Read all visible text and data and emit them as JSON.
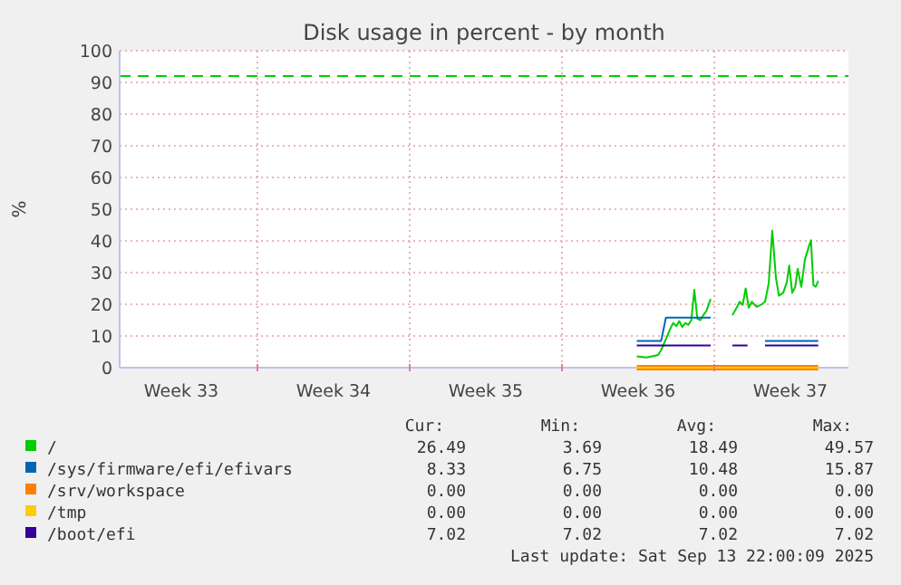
{
  "chart_data": {
    "type": "line",
    "title": "Disk usage in percent - by month",
    "ylabel": "%",
    "xlim": [
      "2025-08-11T16:00",
      "2025-09-14T04:00"
    ],
    "xticks": [
      {
        "value": "2025-08-14T12:00",
        "label": "Week 33"
      },
      {
        "value": "2025-08-18T00:00",
        "label": null
      },
      {
        "value": "2025-08-21T12:00",
        "label": "Week 34"
      },
      {
        "value": "2025-08-25T00:00",
        "label": null
      },
      {
        "value": "2025-08-28T12:00",
        "label": "Week 35"
      },
      {
        "value": "2025-09-01T00:00",
        "label": null
      },
      {
        "value": "2025-09-04T12:00",
        "label": "Week 36"
      },
      {
        "value": "2025-09-08T00:00",
        "label": null
      },
      {
        "value": "2025-09-11T12:00",
        "label": "Week 37"
      }
    ],
    "ylim": [
      0,
      100
    ],
    "yticks": [
      0,
      10,
      20,
      30,
      40,
      50,
      60,
      70,
      80,
      90,
      100
    ],
    "grid": true,
    "legend": "bottom",
    "line_style": "solid",
    "ref_lines": [
      {
        "axis": "y",
        "value": 92,
        "color": "#00cc00",
        "line_style": "dashed"
      }
    ],
    "series": [
      {
        "name": "/",
        "color": "#00cc00",
        "x": [
          "2025-09-04T10:30",
          "2025-09-04T20:40",
          "2025-09-05T03:20",
          "2025-09-05T10:00",
          "2025-09-05T13:20",
          "2025-09-05T18:40",
          "2025-09-05T23:20",
          "2025-09-06T02:40",
          "2025-09-06T06:00",
          "2025-09-06T09:20",
          "2025-09-06T12:40",
          "2025-09-06T16:00",
          "2025-09-06T19:20",
          "2025-09-06T22:40",
          "2025-09-07T02:00",
          "2025-09-07T05:20",
          "2025-09-07T08:40",
          "2025-09-07T12:00",
          "2025-09-07T15:20",
          "2025-09-07T20:00",
          "2025-09-08T08:00",
          "2025-09-08T20:00",
          "2025-09-09T00:40",
          "2025-09-09T04:00",
          "2025-09-09T07:20",
          "2025-09-09T10:40",
          "2025-09-09T14:00",
          "2025-09-09T17:20",
          "2025-09-09T22:40",
          "2025-09-10T03:20",
          "2025-09-10T08:00",
          "2025-09-10T12:00",
          "2025-09-10T16:00",
          "2025-09-10T20:00",
          "2025-09-10T23:20",
          "2025-09-11T04:00",
          "2025-09-11T08:00",
          "2025-09-11T10:40",
          "2025-09-11T14:00",
          "2025-09-11T17:20",
          "2025-09-11T20:00",
          "2025-09-12T00:00",
          "2025-09-12T04:00",
          "2025-09-12T08:00",
          "2025-09-12T10:40",
          "2025-09-12T13:20",
          "2025-09-12T16:00",
          "2025-09-12T18:40"
        ],
        "values": [
          3.6,
          3.2,
          3.6,
          4.0,
          5.5,
          9.0,
          12.2,
          14.1,
          13.1,
          14.7,
          12.8,
          14.1,
          13.5,
          15.0,
          24.6,
          15.4,
          15.0,
          16.6,
          17.9,
          21.7,
          null,
          16.6,
          18.9,
          20.8,
          19.8,
          25.0,
          18.9,
          20.8,
          19.2,
          19.8,
          20.8,
          26.5,
          43.2,
          28.4,
          22.7,
          23.6,
          26.9,
          32.2,
          23.6,
          25.5,
          31.2,
          25.5,
          34.1,
          37.9,
          40.2,
          26.1,
          25.5,
          27.4
        ]
      },
      {
        "name": "/sys/firmware/efi/efivars",
        "color": "#0066b3",
        "x": [
          "2025-09-04T10:30",
          "2025-09-05T13:20",
          "2025-09-05T18:40",
          "2025-09-07T20:00",
          "2025-09-08T20:00",
          "2025-09-10T08:00",
          "2025-09-12T18:40"
        ],
        "values": [
          8.4,
          8.4,
          15.8,
          15.8,
          null,
          8.4,
          8.4
        ]
      },
      {
        "name": "/srv/workspace",
        "color": "#ff8000",
        "x": [
          "2025-09-04T10:30",
          "2025-09-12T18:40"
        ],
        "values": [
          0,
          0
        ]
      },
      {
        "name": "/tmp",
        "color": "#ffcc00",
        "x": [
          "2025-09-04T10:30",
          "2025-09-12T18:40"
        ],
        "values": [
          0,
          0
        ]
      },
      {
        "name": "/boot/efi",
        "color": "#330099",
        "x": [
          "2025-09-04T10:30",
          "2025-09-07T20:00",
          "2025-09-08T08:00",
          "2025-09-08T20:00",
          "2025-09-09T12:40",
          "2025-09-10T00:00",
          "2025-09-10T08:00",
          "2025-09-12T18:40"
        ],
        "values": [
          7.0,
          7.0,
          null,
          7.0,
          7.0,
          null,
          7.0,
          7.0
        ]
      }
    ],
    "annotations": [
      "Cur:",
      "Min:",
      "Avg:",
      "Max:",
      "26.49",
      "3.69",
      "18.49",
      "49.57",
      "8.33",
      "6.75",
      "10.48",
      "15.87",
      "0.00",
      "0.00",
      "0.00",
      "0.00",
      "0.00",
      "0.00",
      "0.00",
      "0.00",
      "7.02",
      "7.02",
      "7.02",
      "7.02",
      "Last update: Sat Sep 13 22:00:09 2025"
    ]
  }
}
